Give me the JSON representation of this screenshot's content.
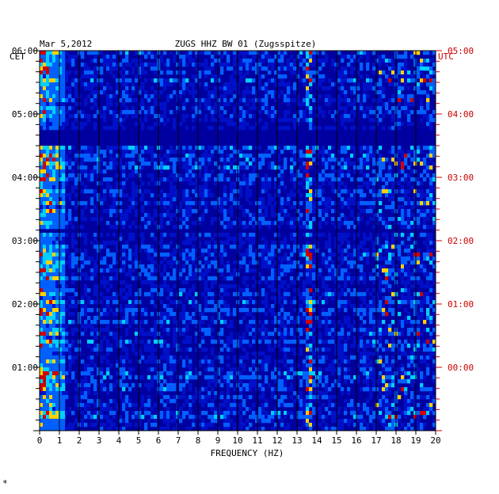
{
  "chart_data": {
    "type": "heatmap",
    "date": "Mar 5,2012",
    "title": "ZUGS HHZ BW 01 (Zugsspitze)",
    "xlabel": "FREQUENCY (HZ)",
    "xlim": [
      0,
      20
    ],
    "x_ticks": [
      "0",
      "1",
      "2",
      "3",
      "4",
      "5",
      "6",
      "7",
      "8",
      "9",
      "10",
      "11",
      "12",
      "13",
      "14",
      "15",
      "16",
      "17",
      "18",
      "19",
      "20"
    ],
    "left_timezone": "CET",
    "right_timezone": "UTC",
    "left_ticks": [
      "06:00",
      "05:00",
      "04:00",
      "03:00",
      "02:00",
      "01:00"
    ],
    "right_ticks": [
      "05:00",
      "04:00",
      "03:00",
      "02:00",
      "01:00",
      "00:00"
    ],
    "time_range_utc_hours": [
      0,
      6
    ],
    "grid": true,
    "colors": {
      "background": "#0000a0",
      "low": "#0010c8",
      "mid": "#0060ff",
      "high": "#00d0ff",
      "peak": "#ffd000",
      "max": "#d00000",
      "grid": "#000000",
      "right_axis": "#cc0000"
    },
    "features": [
      {
        "name": "low-frequency-energy",
        "freq_hz": [
          0.0,
          1.2
        ]
      },
      {
        "name": "narrowband-line",
        "freq_hz": 13.6
      },
      {
        "name": "quiet-band",
        "time_utc": [
          4.5,
          4.75
        ]
      },
      {
        "name": "quiet-band",
        "time_utc": [
          3.1,
          3.2
        ]
      }
    ]
  }
}
